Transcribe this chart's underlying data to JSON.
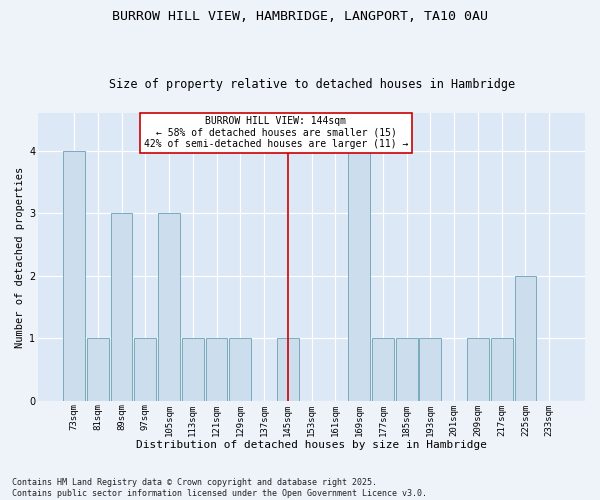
{
  "title1": "BURROW HILL VIEW, HAMBRIDGE, LANGPORT, TA10 0AU",
  "title2": "Size of property relative to detached houses in Hambridge",
  "xlabel": "Distribution of detached houses by size in Hambridge",
  "ylabel": "Number of detached properties",
  "categories": [
    "73sqm",
    "81sqm",
    "89sqm",
    "97sqm",
    "105sqm",
    "113sqm",
    "121sqm",
    "129sqm",
    "137sqm",
    "145sqm",
    "153sqm",
    "161sqm",
    "169sqm",
    "177sqm",
    "185sqm",
    "193sqm",
    "201sqm",
    "209sqm",
    "217sqm",
    "225sqm",
    "233sqm"
  ],
  "values": [
    4,
    1,
    3,
    1,
    3,
    1,
    1,
    1,
    0,
    1,
    0,
    0,
    4,
    1,
    1,
    1,
    0,
    1,
    1,
    2,
    0
  ],
  "bar_color": "#ccdded",
  "bar_edge_color": "#7aaabb",
  "ref_line_index": 9,
  "ref_line_color": "#cc0000",
  "annotation_text": "BURROW HILL VIEW: 144sqm\n← 58% of detached houses are smaller (15)\n42% of semi-detached houses are larger (11) →",
  "annotation_box_facecolor": "#ffffff",
  "annotation_box_edgecolor": "#cc0000",
  "ylim": [
    0,
    4.6
  ],
  "yticks": [
    0,
    1,
    2,
    3,
    4
  ],
  "plot_bg_color": "#dce8f5",
  "fig_bg_color": "#eef3fa",
  "grid_color": "#ffffff",
  "footer_text": "Contains HM Land Registry data © Crown copyright and database right 2025.\nContains public sector information licensed under the Open Government Licence v3.0.",
  "title1_fontsize": 9.5,
  "title2_fontsize": 8.5,
  "xlabel_fontsize": 8,
  "ylabel_fontsize": 7.5,
  "tick_fontsize": 6.5,
  "annotation_fontsize": 7,
  "footer_fontsize": 6
}
